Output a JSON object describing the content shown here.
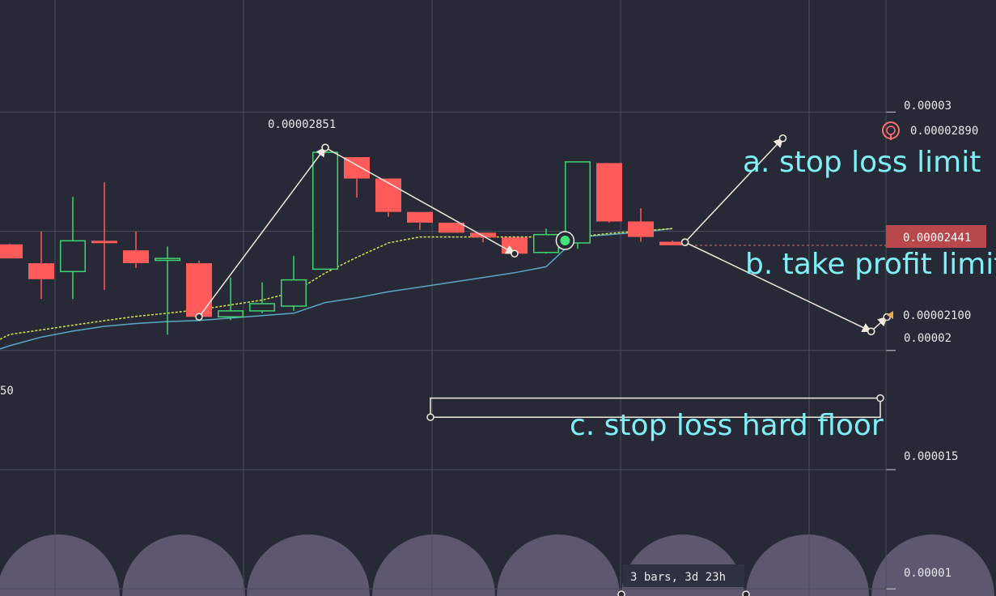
{
  "chart_data": {
    "type": "candlestick",
    "background": "#272a36",
    "colors": {
      "up": "#3fd46f",
      "down": "#ff5b5b",
      "ma_fast": "#d8e54a",
      "ma_slow": "#5aa8c8",
      "drawing": "#f2ebe0",
      "annotation": "#7ff0f5",
      "price_tag_bg": "#b8484b",
      "cycles": "#5d576f",
      "grid": "#4a4d5a",
      "axis_text": "#e8e8ec"
    },
    "ylim": [
      9.7e-06,
      3.47e-05
    ],
    "y_ticks": [
      {
        "value": 3e-05,
        "label": "0.00003"
      },
      {
        "value": 2e-05,
        "label": "0.00002"
      },
      {
        "value": 1.5e-05,
        "label": "0.000015"
      },
      {
        "value": 1e-05,
        "label": "0.00001"
      }
    ],
    "current_price": {
      "value": 2.441e-05,
      "label": "0.00002441"
    },
    "target_marker": {
      "value": 2.89e-05,
      "label": "0.00002890",
      "icon": "target-circle-icon"
    },
    "arrow_marker": {
      "value": 2.1e-05,
      "label": "0.00002100",
      "icon": "triangle-left-icon"
    },
    "left_partial_label": "50",
    "bars_label": "3 bars, 3d 23h",
    "peak_label": {
      "value": 2.851e-05,
      "label": "0.00002851"
    },
    "annotations": {
      "a": "a. stop loss limit",
      "b": "b. take profit limit",
      "c": "c. stop loss hard floor"
    },
    "candles": [
      {
        "o": 2.445e-05,
        "h": 2.447e-05,
        "l": 2.386e-05,
        "c": 2.386e-05
      },
      {
        "o": 2.366e-05,
        "h": 2.499e-05,
        "l": 2.216e-05,
        "c": 2.299e-05
      },
      {
        "o": 2.331e-05,
        "h": 2.645e-05,
        "l": 2.216e-05,
        "c": 2.46e-05
      },
      {
        "o": 2.46e-05,
        "h": 2.705e-05,
        "l": 2.254e-05,
        "c": 2.45e-05
      },
      {
        "o": 2.42e-05,
        "h": 2.499e-05,
        "l": 2.346e-05,
        "c": 2.366e-05
      },
      {
        "o": 2.378e-05,
        "h": 2.436e-05,
        "l": 2.066e-05,
        "c": 2.386e-05
      },
      {
        "o": 2.366e-05,
        "h": 2.376e-05,
        "l": 2.127e-05,
        "c": 2.141e-05
      },
      {
        "o": 2.141e-05,
        "h": 2.306e-05,
        "l": 2.127e-05,
        "c": 2.166e-05
      },
      {
        "o": 2.166e-05,
        "h": 2.286e-05,
        "l": 2.156e-05,
        "c": 2.196e-05
      },
      {
        "o": 2.186e-05,
        "h": 2.396e-05,
        "l": 2.166e-05,
        "c": 2.296e-05
      },
      {
        "o": 2.341e-05,
        "h": 2.851e-05,
        "l": 2.341e-05,
        "c": 2.831e-05
      },
      {
        "o": 2.811e-05,
        "h": 2.811e-05,
        "l": 2.641e-05,
        "c": 2.721e-05
      },
      {
        "o": 2.721e-05,
        "h": 2.721e-05,
        "l": 2.561e-05,
        "c": 2.581e-05
      },
      {
        "o": 2.581e-05,
        "h": 2.581e-05,
        "l": 2.506e-05,
        "c": 2.536e-05
      },
      {
        "o": 2.536e-05,
        "h": 2.536e-05,
        "l": 2.494e-05,
        "c": 2.494e-05
      },
      {
        "o": 2.494e-05,
        "h": 2.494e-05,
        "l": 2.454e-05,
        "c": 2.474e-05
      },
      {
        "o": 2.474e-05,
        "h": 2.474e-05,
        "l": 2.391e-05,
        "c": 2.406e-05
      },
      {
        "o": 2.411e-05,
        "h": 2.511e-05,
        "l": 2.406e-05,
        "c": 2.486e-05
      },
      {
        "o": 2.451e-05,
        "h": 2.791e-05,
        "l": 2.426e-05,
        "c": 2.791e-05
      },
      {
        "o": 2.786e-05,
        "h": 2.786e-05,
        "l": 2.536e-05,
        "c": 2.541e-05
      },
      {
        "o": 2.541e-05,
        "h": 2.596e-05,
        "l": 2.456e-05,
        "c": 2.476e-05
      },
      {
        "o": 2.456e-05,
        "h": 2.461e-05,
        "l": 2.441e-05,
        "c": 2.441e-05
      }
    ],
    "ma_fast": [
      2.067e-05,
      2.086e-05,
      2.106e-05,
      2.125e-05,
      2.143e-05,
      2.156e-05,
      2.171e-05,
      2.191e-05,
      2.211e-05,
      2.244e-05,
      2.325e-05,
      2.391e-05,
      2.451e-05,
      2.476e-05,
      2.476e-05,
      2.476e-05,
      2.476e-05,
      2.476e-05,
      2.476e-05,
      2.491e-05,
      2.501e-05,
      2.511e-05
    ],
    "ma_slow": [
      2.02e-05,
      2.056e-05,
      2.081e-05,
      2.101e-05,
      2.113e-05,
      2.121e-05,
      2.126e-05,
      2.136e-05,
      2.146e-05,
      2.156e-05,
      2.201e-05,
      2.221e-05,
      2.246e-05,
      2.266e-05,
      2.286e-05,
      2.306e-05,
      2.326e-05,
      2.351e-05,
      2.476e-05,
      2.486e-05,
      2.496e-05,
      2.511e-05
    ],
    "signal_dot": {
      "index": 17.6,
      "value": 2.461e-05
    }
  }
}
